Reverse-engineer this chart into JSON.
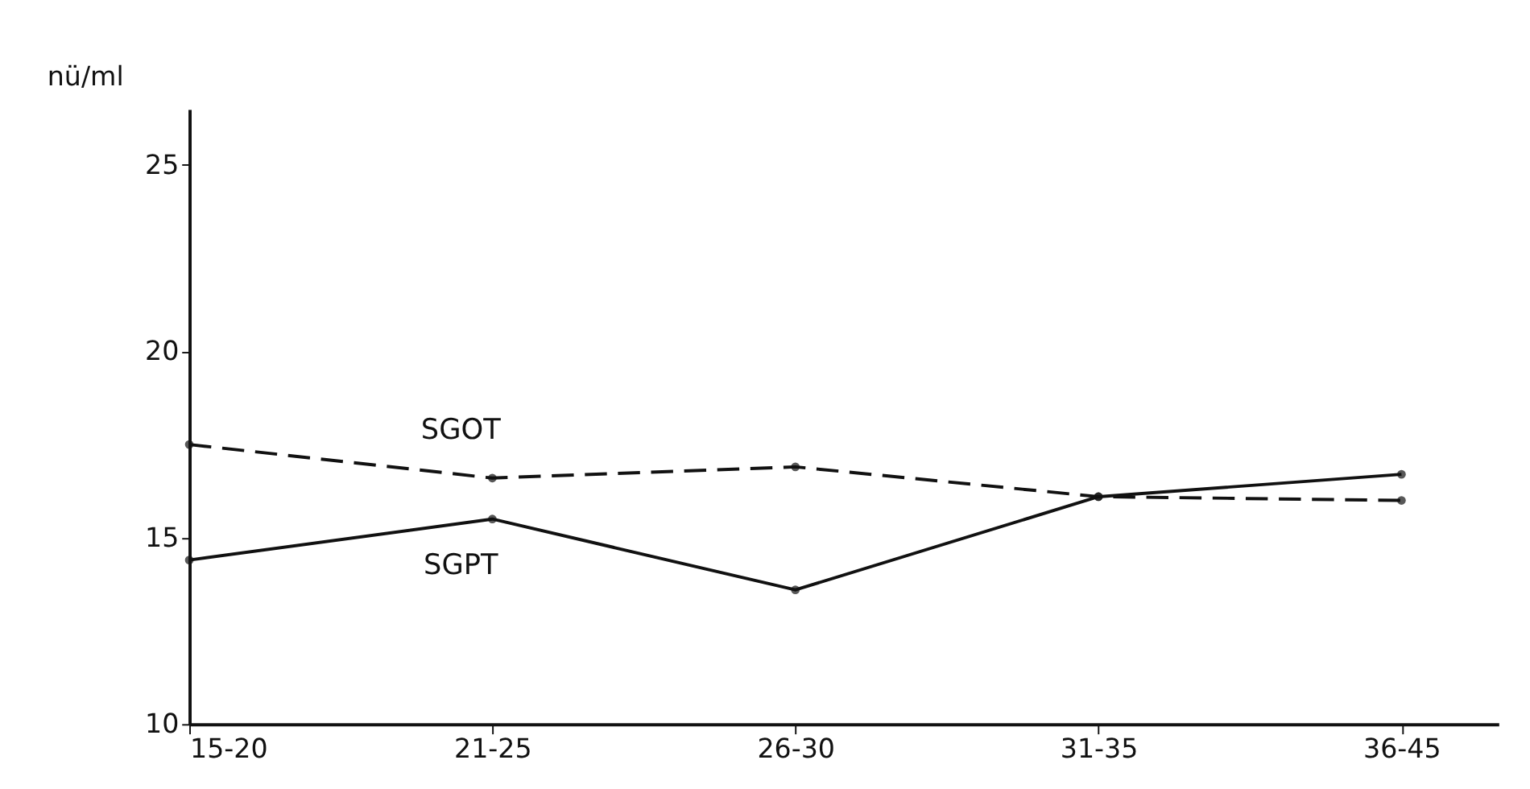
{
  "chart_data": {
    "type": "line",
    "ylabel": "nü/ml",
    "categories": [
      "15-20",
      "21-25",
      "26-30",
      "31-35",
      "36-45"
    ],
    "series": [
      {
        "name": "SGOT",
        "color": "#111111",
        "values": [
          17.5,
          16.6,
          16.9,
          16.1,
          16.0
        ],
        "line_style": "dashed",
        "marker": "circle"
      },
      {
        "name": "SGPT",
        "color": "#111111",
        "values": [
          14.4,
          15.5,
          13.6,
          16.1,
          16.7
        ],
        "line_style": "solid",
        "marker": "circle"
      }
    ],
    "ylim": [
      10,
      26.5
    ],
    "yticks": [
      10,
      15,
      20,
      25
    ],
    "grid": false
  }
}
